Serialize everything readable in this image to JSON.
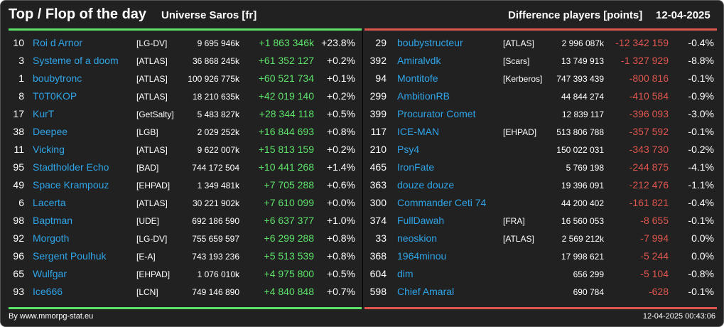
{
  "header": {
    "title": "Top / Flop of the day",
    "universe": "Universe Saros [fr]",
    "metric": "Difference players [points]",
    "date": "12-04-2025"
  },
  "top": [
    {
      "rank": "10",
      "name": "Roi d Arnor",
      "alliance": "[LG-DV]",
      "points": "9 695 946k",
      "diff": "+1 863 346k",
      "pct": "+23.8%"
    },
    {
      "rank": "3",
      "name": "Systeme of a doom",
      "alliance": "[ATLAS]",
      "points": "36 868 245k",
      "diff": "+61 352 127",
      "pct": "+0.2%"
    },
    {
      "rank": "1",
      "name": "boubytronc",
      "alliance": "[ATLAS]",
      "points": "100 926 775k",
      "diff": "+60 521 734",
      "pct": "+0.1%"
    },
    {
      "rank": "8",
      "name": "T0T0KOP",
      "alliance": "[ATLAS]",
      "points": "18 210 635k",
      "diff": "+42 019 140",
      "pct": "+0.2%"
    },
    {
      "rank": "17",
      "name": "KurT",
      "alliance": "[GetSalty]",
      "points": "5 483 827k",
      "diff": "+28 344 118",
      "pct": "+0.5%"
    },
    {
      "rank": "38",
      "name": "Deepee",
      "alliance": "[LGB]",
      "points": "2 029 252k",
      "diff": "+16 844 693",
      "pct": "+0.8%"
    },
    {
      "rank": "11",
      "name": "Vicking",
      "alliance": "[ATLAS]",
      "points": "9 622 007k",
      "diff": "+15 813 159",
      "pct": "+0.2%"
    },
    {
      "rank": "95",
      "name": "Stadtholder Echo",
      "alliance": "[BAD]",
      "points": "744 172 504",
      "diff": "+10 441 268",
      "pct": "+1.4%"
    },
    {
      "rank": "49",
      "name": "Space Krampouz",
      "alliance": "[EHPAD]",
      "points": "1 349 481k",
      "diff": "+7 705 288",
      "pct": "+0.6%"
    },
    {
      "rank": "6",
      "name": "Lacerta",
      "alliance": "[ATLAS]",
      "points": "30 221 902k",
      "diff": "+7 610 099",
      "pct": "+0.0%"
    },
    {
      "rank": "98",
      "name": "Baptman",
      "alliance": "[UDE]",
      "points": "692 186 590",
      "diff": "+6 637 377",
      "pct": "+1.0%"
    },
    {
      "rank": "92",
      "name": "Morgoth",
      "alliance": "[LG-DV]",
      "points": "755 659 597",
      "diff": "+6 299 288",
      "pct": "+0.8%"
    },
    {
      "rank": "96",
      "name": "Sergent Poulhuk",
      "alliance": "[E-A]",
      "points": "743 193 236",
      "diff": "+5 513 539",
      "pct": "+0.8%"
    },
    {
      "rank": "65",
      "name": "Wulfgar",
      "alliance": "[EHPAD]",
      "points": "1 076 010k",
      "diff": "+4 975 800",
      "pct": "+0.5%"
    },
    {
      "rank": "93",
      "name": "Ice666",
      "alliance": "[LCN]",
      "points": "749 146 890",
      "diff": "+4 840 848",
      "pct": "+0.7%"
    }
  ],
  "flop": [
    {
      "rank": "29",
      "name": "boubystructeur",
      "alliance": "[ATLAS]",
      "points": "2 996 087k",
      "diff": "-12 342 159",
      "pct": "-0.4%"
    },
    {
      "rank": "392",
      "name": "Amiralvdk",
      "alliance": "[Scars]",
      "points": "13 749 913",
      "diff": "-1 327 929",
      "pct": "-8.8%"
    },
    {
      "rank": "94",
      "name": "Montitofe",
      "alliance": "[Kerberos]",
      "points": "747 393 439",
      "diff": "-800 816",
      "pct": "-0.1%"
    },
    {
      "rank": "299",
      "name": "AmbitionRB",
      "alliance": "",
      "points": "44 844 274",
      "diff": "-410 584",
      "pct": "-0.9%"
    },
    {
      "rank": "399",
      "name": "Procurator Comet",
      "alliance": "",
      "points": "12 839 117",
      "diff": "-396 093",
      "pct": "-3.0%"
    },
    {
      "rank": "117",
      "name": "ICE-MAN",
      "alliance": "[EHPAD]",
      "points": "513 806 788",
      "diff": "-357 592",
      "pct": "-0.1%"
    },
    {
      "rank": "210",
      "name": "Psy4",
      "alliance": "",
      "points": "150 022 031",
      "diff": "-343 730",
      "pct": "-0.2%"
    },
    {
      "rank": "465",
      "name": "IronFate",
      "alliance": "",
      "points": "5 769 198",
      "diff": "-244 875",
      "pct": "-4.1%"
    },
    {
      "rank": "363",
      "name": "douze douze",
      "alliance": "",
      "points": "19 396 091",
      "diff": "-212 476",
      "pct": "-1.1%"
    },
    {
      "rank": "300",
      "name": "Commander Ceti 74",
      "alliance": "",
      "points": "44 200 402",
      "diff": "-161 821",
      "pct": "-0.4%"
    },
    {
      "rank": "374",
      "name": "FullDawah",
      "alliance": "[FRA]",
      "points": "16 560 053",
      "diff": "-8 655",
      "pct": "-0.1%"
    },
    {
      "rank": "33",
      "name": "neoskion",
      "alliance": "[ATLAS]",
      "points": "2 569 212k",
      "diff": "-7 994",
      "pct": "0.0%"
    },
    {
      "rank": "368",
      "name": "1964minou",
      "alliance": "",
      "points": "17 998 621",
      "diff": "-5 244",
      "pct": "0.0%"
    },
    {
      "rank": "604",
      "name": "dim",
      "alliance": "",
      "points": "656 299",
      "diff": "-5 104",
      "pct": "-0.8%"
    },
    {
      "rank": "598",
      "name": "Chief Amaral",
      "alliance": "",
      "points": "690 784",
      "diff": "-628",
      "pct": "-0.1%"
    }
  ],
  "footer": {
    "source": "By www.mmorpg-stat.eu",
    "timestamp": "12-04-2025 00:43:06"
  },
  "colors": {
    "background": "#212121",
    "name": "#2fa4e7",
    "positive": "#5de36a",
    "negative": "#e0564f"
  }
}
